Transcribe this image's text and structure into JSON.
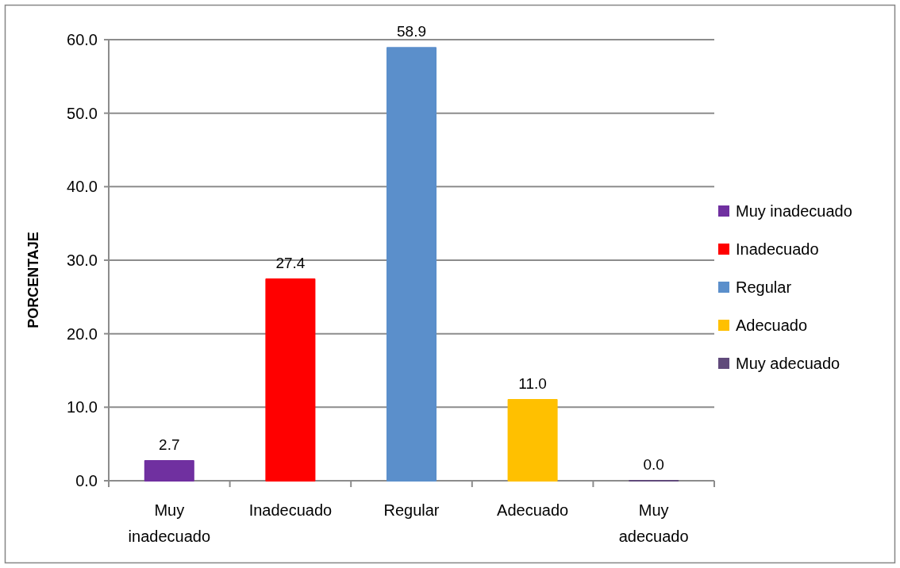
{
  "chart_data": {
    "type": "bar",
    "categories": [
      "Muy inadecuado",
      "Inadecuado",
      "Regular",
      "Adecuado",
      "Muy adecuado"
    ],
    "series": [
      {
        "name": "Muy inadecuado",
        "color": "#7030a0",
        "values": [
          2.7,
          null,
          null,
          null,
          null
        ],
        "value_labels": [
          "2.7",
          null,
          null,
          null,
          null
        ]
      },
      {
        "name": "Inadecuado",
        "color": "#ff0000",
        "values": [
          null,
          27.4,
          null,
          null,
          null
        ],
        "value_labels": [
          null,
          "27.4",
          null,
          null,
          null
        ]
      },
      {
        "name": "Regular",
        "color": "#5b8fcb",
        "values": [
          null,
          null,
          58.9,
          null,
          null
        ],
        "value_labels": [
          null,
          null,
          "58.9",
          null,
          null
        ]
      },
      {
        "name": "Adecuado",
        "color": "#ffc000",
        "values": [
          null,
          null,
          null,
          11.0,
          null
        ],
        "value_labels": [
          null,
          null,
          null,
          "11.0",
          null
        ]
      },
      {
        "name": "Muy adecuado",
        "color": "#604a7b",
        "values": [
          null,
          null,
          null,
          null,
          0.0
        ],
        "value_labels": [
          null,
          null,
          null,
          null,
          "0.0"
        ]
      }
    ],
    "ylabel": "PORCENTAJE",
    "ylim": [
      0,
      60
    ],
    "yticks": [
      {
        "value": 0,
        "label": "0.0"
      },
      {
        "value": 10,
        "label": "10.0"
      },
      {
        "value": 20,
        "label": "20.0"
      },
      {
        "value": 30,
        "label": "30.0"
      },
      {
        "value": 40,
        "label": "40.0"
      },
      {
        "value": 50,
        "label": "50.0"
      },
      {
        "value": 60,
        "label": "60.0"
      }
    ],
    "grid": true,
    "legend": "right"
  }
}
